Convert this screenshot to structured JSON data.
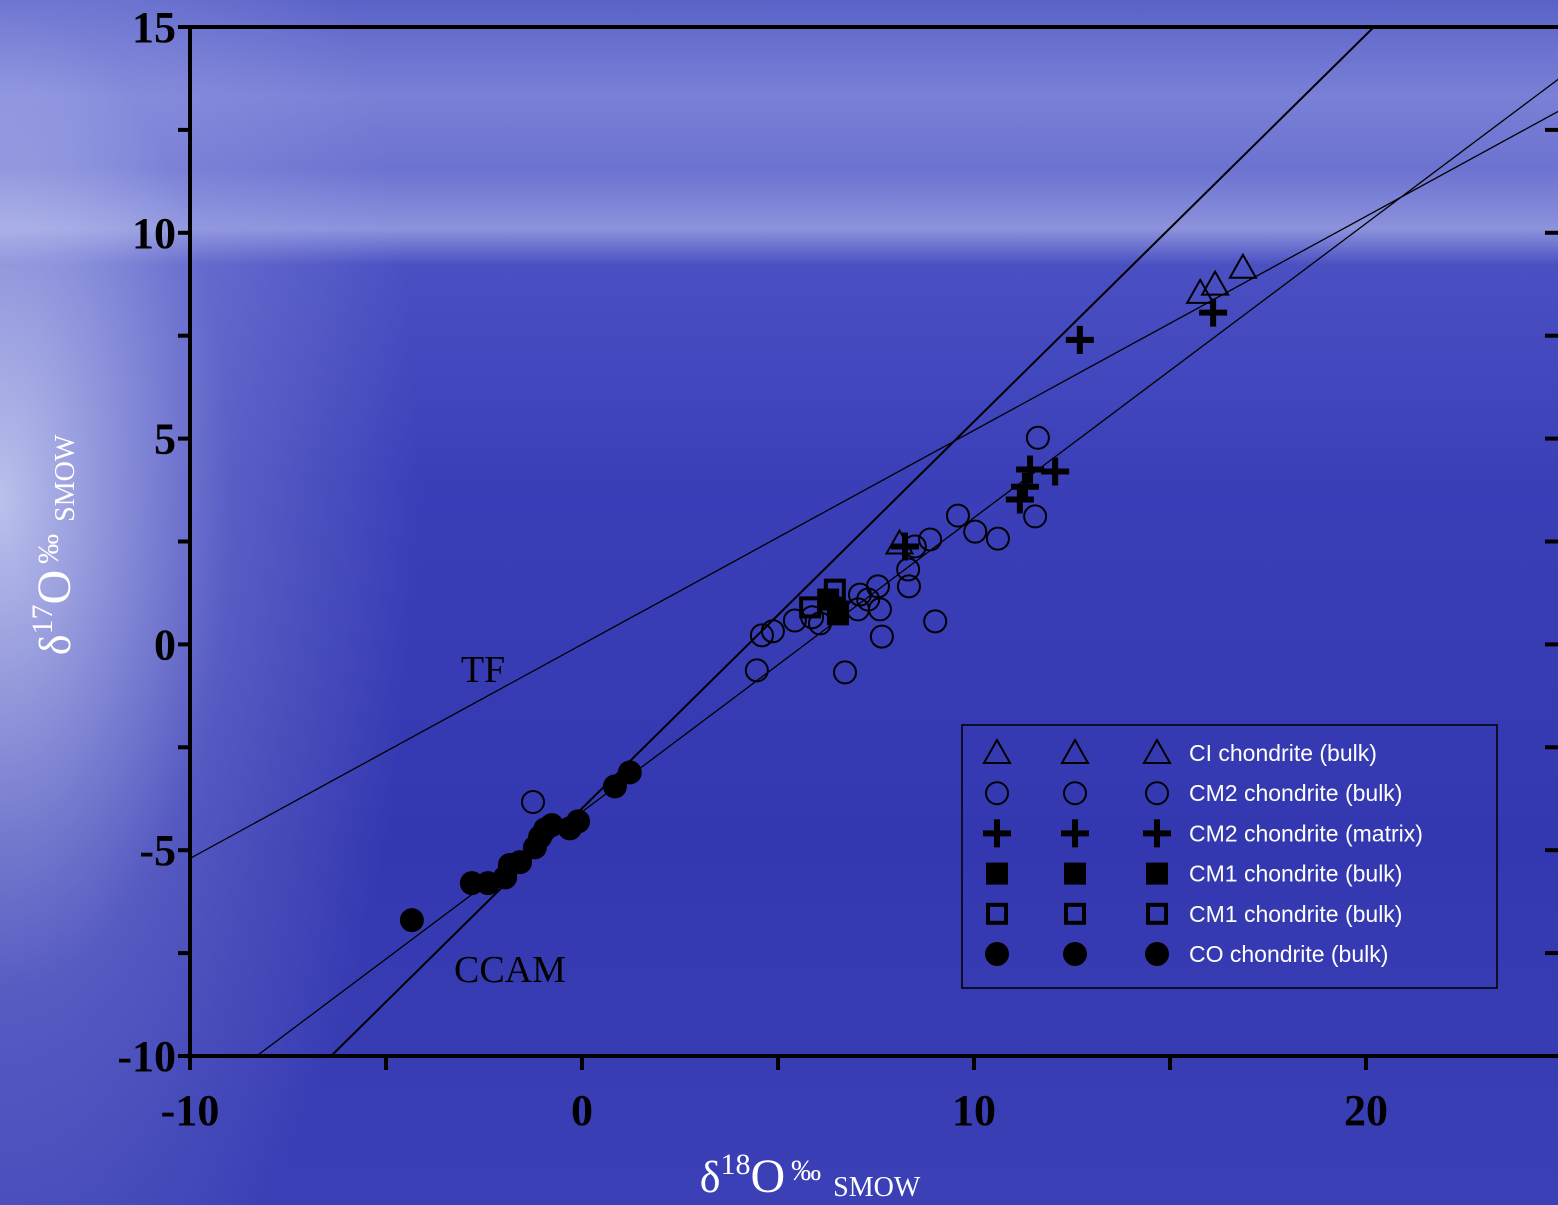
{
  "chart_data": {
    "type": "scatter",
    "xlabel": [
      "δ",
      "18",
      "O",
      "‰",
      "SMOW"
    ],
    "ylabel": [
      "δ",
      "17",
      "O",
      "‰",
      "SMOW"
    ],
    "xlim": [
      -10,
      25
    ],
    "ylim": [
      -10,
      15
    ],
    "xticks": [
      -10,
      0,
      10,
      20
    ],
    "xminorticks": [
      -5,
      5,
      15
    ],
    "yticks": [
      -10,
      -5,
      0,
      5,
      10,
      15
    ],
    "yminorticks": [
      -7.5,
      -2.5,
      2.5,
      7.5,
      12.5
    ],
    "legend": "lower right",
    "lines": [
      {
        "label": "TF",
        "x": [
          -10,
          25
        ],
        "y": [
          -5.2,
          13
        ]
      },
      {
        "label": "CCAM",
        "x": [
          -6.4,
          20.2
        ],
        "y": [
          -10,
          15
        ]
      },
      {
        "x": [
          -8.3,
          25
        ],
        "y": [
          -10,
          13.8
        ]
      }
    ],
    "series": [
      {
        "name": "CI chondrite (bulk)",
        "marker": "triangle",
        "color": "#000000",
        "x": [
          15.77,
          16.15,
          16.86,
          8.1
        ],
        "values": [
          8.54,
          8.74,
          9.15,
          2.45
        ]
      },
      {
        "name": "CM2 chondrite (bulk)",
        "marker": "circle",
        "color": "#000000",
        "x": [
          -1.25,
          4.46,
          4.59,
          4.87,
          5.43,
          5.87,
          6.07,
          6.71,
          7.04,
          7.09,
          7.3,
          7.55,
          7.6,
          7.65,
          8.32,
          8.34,
          8.49,
          8.88,
          9.01,
          9.59,
          10.03,
          10.61,
          11.56,
          11.63
        ],
        "values": [
          -3.83,
          -0.63,
          0.22,
          0.32,
          0.58,
          0.66,
          0.51,
          -0.68,
          0.85,
          1.21,
          1.09,
          1.41,
          0.85,
          0.19,
          1.82,
          1.41,
          2.38,
          2.55,
          0.56,
          3.13,
          2.74,
          2.57,
          3.11,
          5.02
        ]
      },
      {
        "name": "CM2 chondrite (matrix)",
        "marker": "plus",
        "color": "#000000",
        "x": [
          12.7,
          16.1,
          8.24,
          11.17,
          11.3,
          11.43,
          12.07
        ],
        "values": [
          7.4,
          8.06,
          2.38,
          3.52,
          3.83,
          4.25,
          4.2
        ]
      },
      {
        "name": "CM1 chondrite (bulk)",
        "marker": "square",
        "color": "#000000",
        "x": [
          6.28,
          6.53
        ],
        "values": [
          1.09,
          0.73
        ]
      },
      {
        "name": "CM1 chondrite (bulk)",
        "marker": "open-square",
        "color": "#000000",
        "x": [
          6.45,
          5.82,
          6.53
        ],
        "values": [
          1.33,
          0.9,
          0.8
        ]
      },
      {
        "name": "CO chondrite (bulk)",
        "marker": "dot",
        "color": "#000000",
        "x": [
          -4.34,
          -2.81,
          -2.4,
          -1.96,
          -1.84,
          -1.58,
          -1.2,
          -1.07,
          -0.94,
          -0.77,
          -0.31,
          -0.1,
          0.84,
          1.22
        ],
        "values": [
          -6.7,
          -5.8,
          -5.8,
          -5.66,
          -5.36,
          -5.29,
          -4.93,
          -4.68,
          -4.49,
          -4.39,
          -4.47,
          -4.3,
          -3.45,
          -3.11
        ]
      }
    ]
  }
}
